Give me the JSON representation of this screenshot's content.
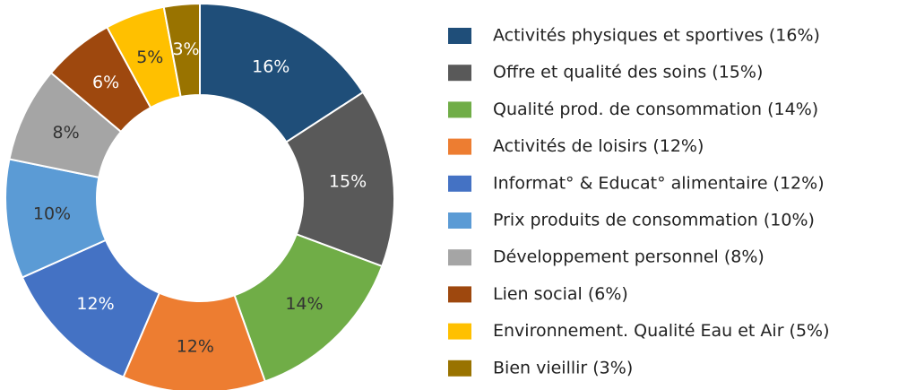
{
  "chart_data": {
    "type": "donut",
    "categories": [
      "Activités physiques et sportives (16%)",
      "Offre et qualité des soins (15%)",
      "Qualité prod. de consommation (14%)",
      "Activités de loisirs (12%)",
      "Informat° & Educat° alimentaire (12%)",
      "Prix produits de consommation (10%)",
      "Développement personnel (8%)",
      "Lien social (6%)",
      "Environnement. Qualité Eau et Air (5%)",
      "Bien vieillir (3%)"
    ],
    "values": [
      16,
      15,
      14,
      12,
      12,
      10,
      8,
      6,
      5,
      3
    ],
    "value_labels": [
      "16%",
      "15%",
      "14%",
      "12%",
      "12%",
      "10%",
      "8%",
      "6%",
      "5%",
      "3%"
    ],
    "colors": [
      "#1f4e79",
      "#595959",
      "#70ad47",
      "#ed7d31",
      "#4472c4",
      "#5b9bd5",
      "#a5a5a5",
      "#9e480e",
      "#ffc000",
      "#997300"
    ],
    "legend": "right"
  }
}
